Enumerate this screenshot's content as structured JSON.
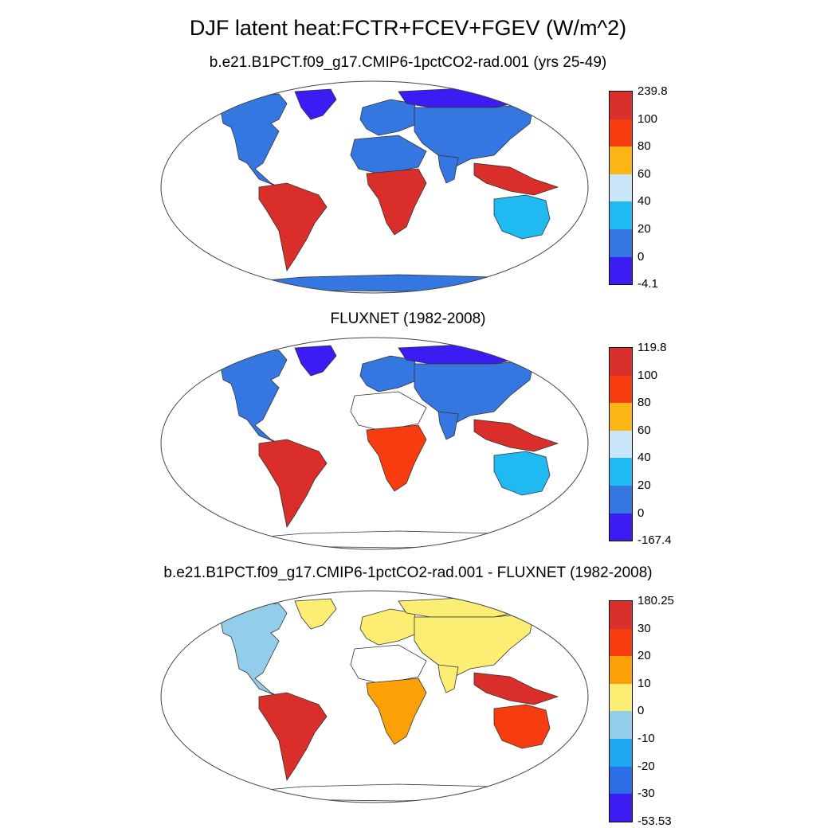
{
  "title": "DJF latent heat:FCTR+FCEV+FGEV (W/m^2)",
  "panels": [
    {
      "title": "b.e21.B1PCT.f09_g17.CMIP6-1pctCO2-rad.001 (yrs 25-49)",
      "colorbar": {
        "labels": [
          "239.8",
          "100",
          "80",
          "60",
          "40",
          "20",
          "0",
          "-4.1"
        ],
        "colors": [
          "#d92e2a",
          "#f73c0f",
          "#fbb515",
          "#c8e6f8",
          "#1ebaf1",
          "#3577e0",
          "#3b1cf2"
        ]
      },
      "regions": {
        "north_america": "#3577e0",
        "greenland": "#3b1cf2",
        "south_america": "#d92e2a",
        "europe": "#3577e0",
        "asia": "#3577e0",
        "siberia": "#3b1cf2",
        "africa_north": "#3577e0",
        "africa_south": "#d92e2a",
        "australia": "#1ebaf1",
        "se_asia": "#d92e2a",
        "antarctica": "#3577e0",
        "india": "#3577e0"
      }
    },
    {
      "title": "FLUXNET (1982-2008)",
      "colorbar": {
        "labels": [
          "119.8",
          "100",
          "80",
          "60",
          "40",
          "20",
          "0",
          "-167.4"
        ],
        "colors": [
          "#d92e2a",
          "#f73c0f",
          "#fbb515",
          "#c8e6f8",
          "#1ebaf1",
          "#3577e0",
          "#3b1cf2"
        ]
      },
      "regions": {
        "north_america": "#3577e0",
        "greenland": "#3b1cf2",
        "south_america": "#d92e2a",
        "europe": "#3577e0",
        "asia": "#3577e0",
        "siberia": "#3b1cf2",
        "africa_north": "#ffffff",
        "africa_south": "#f73c0f",
        "australia": "#1ebaf1",
        "se_asia": "#d92e2a",
        "antarctica": "#ffffff",
        "india": "#3577e0"
      }
    },
    {
      "title": "b.e21.B1PCT.f09_g17.CMIP6-1pctCO2-rad.001 - FLUXNET (1982-2008)",
      "colorbar": {
        "labels": [
          "180.25",
          "30",
          "20",
          "10",
          "0",
          "-10",
          "-20",
          "-30",
          "-53.53"
        ],
        "colors": [
          "#d92e2a",
          "#f73c0f",
          "#fba007",
          "#fbee73",
          "#92cdeb",
          "#1ba8f0",
          "#2b6ee6",
          "#3b1cf2"
        ]
      },
      "regions": {
        "north_america": "#92cdeb",
        "greenland": "#fbee73",
        "south_america": "#d92e2a",
        "europe": "#fbee73",
        "asia": "#fbee73",
        "siberia": "#fbee73",
        "africa_north": "#ffffff",
        "africa_south": "#fba007",
        "australia": "#f73c0f",
        "se_asia": "#d92e2a",
        "antarctica": "#ffffff",
        "india": "#fbee73"
      }
    }
  ]
}
